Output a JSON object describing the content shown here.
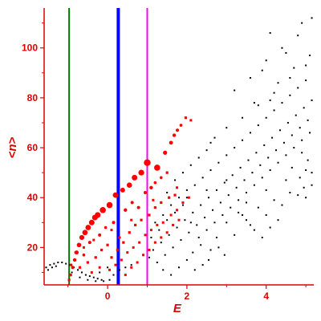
{
  "chart_data": {
    "type": "scatter",
    "xlabel": "E",
    "ylabel": "<n>",
    "xlim": [
      -1.6,
      5.2
    ],
    "ylim": [
      5,
      116
    ],
    "x_ticks": [
      0,
      2,
      4
    ],
    "y_ticks": [
      20,
      40,
      60,
      80,
      100
    ],
    "grid": false,
    "colors": {
      "axes": "#e00000",
      "ticks": "#e00000",
      "black_points": "#000000",
      "red_points": "#ff0000",
      "line_green": "#007a00",
      "line_blue": "#0000ff",
      "line_magenta": "#ff00ff"
    },
    "vertical_lines": [
      {
        "x": -0.97,
        "color": "#007a00",
        "style": "thin"
      },
      {
        "x": 0.27,
        "color": "#0000ff",
        "style": "thick"
      },
      {
        "x": 1.0,
        "color": "#ff00ff",
        "style": "thin"
      }
    ],
    "series": [
      {
        "color": "#ff0000",
        "marker": "circle-sized",
        "points": [
          [
            -0.97,
            7,
            1.6
          ],
          [
            -0.93,
            9,
            1.8
          ],
          [
            -0.88,
            12,
            2.0
          ],
          [
            -0.83,
            15,
            2.2
          ],
          [
            -0.78,
            18,
            2.5
          ],
          [
            -0.72,
            21,
            2.8
          ],
          [
            -0.65,
            24,
            3.1
          ],
          [
            -0.57,
            26,
            3.3
          ],
          [
            -0.49,
            28,
            3.4
          ],
          [
            -0.4,
            30,
            3.5
          ],
          [
            -0.32,
            32,
            3.5
          ],
          [
            -0.25,
            33,
            3.6
          ],
          [
            -0.12,
            35,
            3.8
          ],
          [
            0.05,
            37,
            3.8
          ],
          [
            0.2,
            41,
            3.4
          ],
          [
            0.38,
            43,
            3.0
          ],
          [
            0.55,
            45,
            3.3
          ],
          [
            0.68,
            48,
            3.5
          ],
          [
            0.85,
            50,
            3.6
          ],
          [
            1.0,
            54,
            4.2
          ],
          [
            1.25,
            52,
            3.8
          ],
          [
            1.45,
            58,
            2.6
          ],
          [
            1.6,
            62,
            2.4
          ],
          [
            1.68,
            65,
            2.2
          ],
          [
            1.76,
            67,
            2.0
          ],
          [
            1.85,
            69,
            1.8
          ],
          [
            1.97,
            72,
            1.6
          ],
          [
            2.1,
            71,
            1.5
          ],
          [
            -0.92,
            13,
            1.8
          ],
          [
            -0.8,
            18,
            2.0
          ],
          [
            -0.6,
            17,
            1.8
          ],
          [
            -0.45,
            22,
            2.0
          ],
          [
            -0.2,
            25,
            2.0
          ],
          [
            -0.05,
            28,
            1.8
          ],
          [
            0.15,
            30,
            2.0
          ],
          [
            0.3,
            24,
            1.8
          ],
          [
            0.45,
            35,
            2.2
          ],
          [
            0.62,
            38,
            2.0
          ],
          [
            0.78,
            36,
            2.0
          ],
          [
            0.95,
            42,
            2.0
          ],
          [
            1.1,
            44,
            2.2
          ],
          [
            1.2,
            46,
            1.8
          ],
          [
            1.35,
            48,
            1.8
          ],
          [
            1.5,
            50,
            1.6
          ],
          [
            -0.7,
            12,
            1.6
          ],
          [
            -0.5,
            14,
            1.6
          ],
          [
            -0.3,
            16,
            1.6
          ],
          [
            -0.15,
            19,
            1.6
          ],
          [
            0.0,
            21,
            1.6
          ],
          [
            0.1,
            16,
            1.6
          ],
          [
            0.25,
            19,
            1.6
          ],
          [
            0.4,
            22,
            1.6
          ],
          [
            0.55,
            26,
            1.6
          ],
          [
            0.7,
            29,
            1.6
          ],
          [
            0.85,
            31,
            1.6
          ],
          [
            1.05,
            33,
            1.6
          ],
          [
            1.2,
            36,
            1.6
          ],
          [
            1.35,
            38,
            1.6
          ],
          [
            1.55,
            40,
            1.6
          ],
          [
            1.7,
            41,
            1.6
          ],
          [
            -0.4,
            10,
            1.5
          ],
          [
            -0.2,
            12,
            1.5
          ],
          [
            0.05,
            11,
            1.5
          ],
          [
            0.2,
            13,
            1.5
          ],
          [
            0.35,
            15,
            1.5
          ],
          [
            0.5,
            18,
            1.5
          ],
          [
            0.65,
            20,
            1.5
          ],
          [
            0.8,
            22,
            1.5
          ],
          [
            0.95,
            25,
            1.5
          ],
          [
            1.1,
            27,
            1.5
          ],
          [
            1.25,
            29,
            1.5
          ],
          [
            1.4,
            30,
            1.5
          ],
          [
            1.6,
            33,
            1.5
          ],
          [
            1.75,
            35,
            1.5
          ],
          [
            1.9,
            38,
            1.5
          ],
          [
            2.05,
            40,
            1.5
          ],
          [
            0.45,
            9,
            1.5
          ],
          [
            0.6,
            12,
            1.5
          ],
          [
            0.75,
            14,
            1.5
          ],
          [
            0.9,
            17,
            1.5
          ],
          [
            1.05,
            19,
            1.5
          ],
          [
            1.2,
            22,
            1.5
          ],
          [
            1.35,
            24,
            1.5
          ],
          [
            1.5,
            26,
            1.5
          ],
          [
            1.65,
            29,
            1.5
          ],
          [
            1.8,
            31,
            1.5
          ],
          [
            -0.6,
            20,
            1.5
          ],
          [
            -0.35,
            23,
            1.5
          ],
          [
            0.1,
            27,
            1.5
          ],
          [
            0.6,
            31,
            1.5
          ],
          [
            1.15,
            39,
            1.5
          ],
          [
            1.75,
            44,
            1.5
          ]
        ]
      },
      {
        "color": "#000000",
        "marker": "dot",
        "points": [
          [
            -1.55,
            12
          ],
          [
            -1.45,
            13
          ],
          [
            -1.35,
            13.5
          ],
          [
            -1.25,
            14
          ],
          [
            -1.15,
            14
          ],
          [
            -1.05,
            13.5
          ],
          [
            -0.95,
            13
          ],
          [
            -0.85,
            12
          ],
          [
            -0.75,
            11
          ],
          [
            -0.65,
            10
          ],
          [
            -0.55,
            9
          ],
          [
            -0.45,
            8.5
          ],
          [
            -0.35,
            8
          ],
          [
            -0.25,
            7.5
          ],
          [
            -0.15,
            7
          ],
          [
            -1.5,
            11
          ],
          [
            -1.4,
            12
          ],
          [
            -1.3,
            12.5
          ],
          [
            -0.9,
            10
          ],
          [
            -0.7,
            8
          ],
          [
            -0.5,
            7
          ],
          [
            -0.3,
            6.5
          ],
          [
            -0.1,
            6.5
          ],
          [
            0.05,
            7
          ],
          [
            0.15,
            9
          ],
          [
            0.3,
            11
          ],
          [
            0.45,
            12
          ],
          [
            0.6,
            13
          ],
          [
            -0.2,
            10
          ],
          [
            0.0,
            12
          ],
          [
            1.05,
            16
          ],
          [
            1.15,
            19
          ],
          [
            1.25,
            14
          ],
          [
            1.35,
            22
          ],
          [
            1.45,
            17
          ],
          [
            1.55,
            25
          ],
          [
            1.65,
            20
          ],
          [
            1.75,
            28
          ],
          [
            1.85,
            23
          ],
          [
            1.95,
            31
          ],
          [
            2.05,
            26
          ],
          [
            2.15,
            34
          ],
          [
            2.25,
            29
          ],
          [
            2.35,
            37
          ],
          [
            2.45,
            32
          ],
          [
            2.55,
            40
          ],
          [
            2.65,
            35
          ],
          [
            2.75,
            43
          ],
          [
            2.85,
            38
          ],
          [
            2.95,
            46
          ],
          [
            3.05,
            41
          ],
          [
            3.15,
            49
          ],
          [
            3.25,
            44
          ],
          [
            3.35,
            52
          ],
          [
            3.45,
            47
          ],
          [
            3.55,
            55
          ],
          [
            3.65,
            50
          ],
          [
            3.75,
            58
          ],
          [
            3.85,
            53
          ],
          [
            3.95,
            61
          ],
          [
            4.05,
            56
          ],
          [
            4.15,
            64
          ],
          [
            4.25,
            59
          ],
          [
            4.35,
            67
          ],
          [
            4.45,
            62
          ],
          [
            4.55,
            70
          ],
          [
            4.65,
            65
          ],
          [
            4.75,
            73
          ],
          [
            4.85,
            68
          ],
          [
            4.95,
            76
          ],
          [
            5.05,
            71
          ],
          [
            5.15,
            79
          ],
          [
            1.1,
            24
          ],
          [
            1.3,
            27
          ],
          [
            1.5,
            31
          ],
          [
            1.7,
            34
          ],
          [
            1.9,
            37
          ],
          [
            2.1,
            30
          ],
          [
            2.3,
            24
          ],
          [
            2.5,
            27
          ],
          [
            2.7,
            30
          ],
          [
            2.9,
            33
          ],
          [
            3.1,
            36
          ],
          [
            3.3,
            39
          ],
          [
            3.5,
            42
          ],
          [
            3.7,
            45
          ],
          [
            3.9,
            48
          ],
          [
            4.1,
            51
          ],
          [
            4.3,
            54
          ],
          [
            4.5,
            57
          ],
          [
            4.7,
            60
          ],
          [
            4.9,
            63
          ],
          [
            5.1,
            66
          ],
          [
            2.2,
            45
          ],
          [
            2.4,
            48
          ],
          [
            2.6,
            51
          ],
          [
            2.8,
            54
          ],
          [
            3.0,
            57
          ],
          [
            3.2,
            60
          ],
          [
            3.4,
            63
          ],
          [
            3.6,
            66
          ],
          [
            3.8,
            69
          ],
          [
            4.0,
            72
          ],
          [
            4.2,
            75
          ],
          [
            4.4,
            78
          ],
          [
            4.6,
            81
          ],
          [
            4.8,
            84
          ],
          [
            5.0,
            87
          ],
          [
            2.0,
            40
          ],
          [
            2.5,
            43
          ],
          [
            3.0,
            47
          ],
          [
            3.5,
            38
          ],
          [
            4.0,
            43
          ],
          [
            4.5,
            47
          ],
          [
            5.0,
            51
          ],
          [
            2.8,
            20
          ],
          [
            3.2,
            25
          ],
          [
            3.6,
            29
          ],
          [
            4.0,
            33
          ],
          [
            4.4,
            37
          ],
          [
            4.8,
            41
          ],
          [
            5.15,
            45
          ],
          [
            3.0,
            30
          ],
          [
            3.4,
            33
          ],
          [
            3.8,
            36
          ],
          [
            4.2,
            39
          ],
          [
            4.6,
            42
          ],
          [
            5.0,
            40
          ],
          [
            2.6,
            62
          ],
          [
            3.0,
            68
          ],
          [
            3.4,
            72
          ],
          [
            3.8,
            77
          ],
          [
            4.2,
            82
          ],
          [
            4.6,
            88
          ],
          [
            5.0,
            93
          ],
          [
            3.2,
            83
          ],
          [
            3.6,
            88
          ],
          [
            4.0,
            95
          ],
          [
            4.4,
            100
          ],
          [
            4.8,
            105
          ],
          [
            5.15,
            112
          ],
          [
            4.1,
            106
          ],
          [
            4.5,
            98
          ],
          [
            4.9,
            110
          ],
          [
            3.9,
            91
          ],
          [
            4.3,
            86
          ],
          [
            4.7,
            92
          ],
          [
            5.1,
            97
          ],
          [
            3.7,
            78
          ],
          [
            4.1,
            79
          ],
          [
            4.9,
            58
          ],
          [
            5.05,
            55
          ],
          [
            5.15,
            50
          ],
          [
            4.85,
            48
          ],
          [
            4.65,
            52
          ],
          [
            4.95,
            44
          ],
          [
            2.15,
            18
          ],
          [
            2.35,
            21
          ],
          [
            2.55,
            15
          ],
          [
            2.75,
            24
          ],
          [
            2.95,
            17
          ],
          [
            1.8,
            12
          ],
          [
            2.0,
            15
          ],
          [
            2.2,
            11
          ],
          [
            1.6,
            9
          ],
          [
            1.4,
            11
          ],
          [
            2.4,
            13
          ],
          [
            2.6,
            19
          ],
          [
            3.3,
            34
          ],
          [
            3.5,
            31
          ],
          [
            3.7,
            27
          ],
          [
            3.9,
            24
          ],
          [
            4.1,
            28
          ],
          [
            4.3,
            31
          ],
          [
            1.2,
            30
          ],
          [
            1.4,
            33
          ],
          [
            1.6,
            37
          ],
          [
            1.8,
            40
          ],
          [
            2.0,
            43
          ],
          [
            1.5,
            42
          ],
          [
            1.7,
            47
          ],
          [
            1.9,
            50
          ],
          [
            2.1,
            53
          ],
          [
            2.3,
            56
          ],
          [
            2.5,
            59
          ],
          [
            2.7,
            64
          ]
        ]
      }
    ]
  }
}
